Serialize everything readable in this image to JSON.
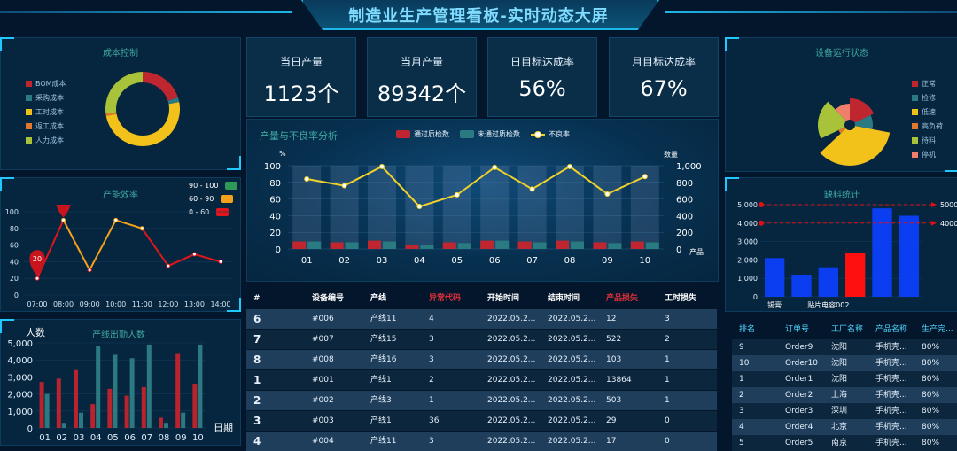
{
  "header": {
    "title": "制造业生产管理看板-实时动态大屏"
  },
  "cost": {
    "title": "成本控制",
    "legend": [
      {
        "label": "BOM成本",
        "color": "#c0262f"
      },
      {
        "label": "采购成本",
        "color": "#2a7a82"
      },
      {
        "label": "工时成本",
        "color": "#f2c21a"
      },
      {
        "label": "返工成本",
        "color": "#e0792b"
      },
      {
        "label": "人力成本",
        "color": "#a8c23a"
      }
    ],
    "values": [
      20,
      2,
      50,
      1,
      27
    ]
  },
  "efficiency": {
    "title": "产能效率",
    "legend": [
      {
        "label": "90 - 100",
        "color": "#2e9a5a"
      },
      {
        "label": "60 - 90",
        "color": "#f5a21a"
      },
      {
        "label": "0 - 60",
        "color": "#e0161b"
      }
    ],
    "pin_high": "90",
    "pin_low": "20"
  },
  "attendance": {
    "title": "产线出勤人数",
    "ylabel": "人数",
    "xlabel": "日期"
  },
  "kpis": [
    {
      "label": "当日产量",
      "value": "1123个"
    },
    {
      "label": "当月产量",
      "value": "89342个"
    },
    {
      "label": "日目标达成率",
      "value": "56%"
    },
    {
      "label": "月目标达成率",
      "value": "67%"
    }
  ],
  "quality": {
    "title": "产量与不良率分析",
    "legend": [
      "通过质检数",
      "未通过质检数",
      "不良率"
    ],
    "left_unit": "%",
    "right_unit": "数量",
    "right_suffix": "产品"
  },
  "device": {
    "title": "设备运行状态",
    "legend": [
      {
        "label": "正常",
        "color": "#c0262f"
      },
      {
        "label": "检修",
        "color": "#2a7a82"
      },
      {
        "label": "低速",
        "color": "#f2c21a"
      },
      {
        "label": "高负荷",
        "color": "#e0792b"
      },
      {
        "label": "待料",
        "color": "#a8c23a"
      },
      {
        "label": "停机",
        "color": "#ef7f6a"
      }
    ],
    "values": [
      18,
      10,
      35,
      5,
      20,
      12
    ]
  },
  "shortage": {
    "title": "缺料统计",
    "line_a": "5000",
    "line_b": "4000"
  },
  "anomaly_table": {
    "headers": [
      "#",
      "设备编号",
      "产线",
      "异常代码",
      "开始时间",
      "结束时间",
      "产品损失",
      "工时损失"
    ],
    "header_colors": [
      "#ffffff",
      "#ffffff",
      "#ffffff",
      "#e0303a",
      "#ffffff",
      "#ffffff",
      "#e0303a",
      "#ffffff"
    ],
    "rows": [
      [
        "6",
        "#006",
        "产线11",
        "4",
        "2022.05.2...",
        "2022.05.2...",
        "12",
        "3"
      ],
      [
        "7",
        "#007",
        "产线15",
        "3",
        "2022.05.2...",
        "2022.05.2...",
        "522",
        "2"
      ],
      [
        "8",
        "#008",
        "产线16",
        "3",
        "2022.05.2...",
        "2022.05.2...",
        "103",
        "1"
      ],
      [
        "1",
        "#001",
        "产线1",
        "2",
        "2022.05.2...",
        "2022.05.2...",
        "13864",
        "1"
      ],
      [
        "2",
        "#002",
        "产线3",
        "1",
        "2022.05.2...",
        "2022.05.2...",
        "503",
        "1"
      ],
      [
        "3",
        "#003",
        "产线1",
        "36",
        "2022.05.2...",
        "2022.05.2...",
        "29",
        "0"
      ],
      [
        "4",
        "#004",
        "产线11",
        "3",
        "2022.05.2...",
        "2022.05.2...",
        "17",
        "0"
      ]
    ]
  },
  "order_table": {
    "headers": [
      "排名",
      "订单号",
      "工厂名称",
      "产品名称",
      "生产完..."
    ],
    "rows": [
      [
        "9",
        "Order9",
        "沈阳",
        "手机壳...",
        "80%"
      ],
      [
        "10",
        "Order10",
        "沈阳",
        "手机壳...",
        "80%"
      ],
      [
        "1",
        "Order1",
        "沈阳",
        "手机壳...",
        "80%"
      ],
      [
        "2",
        "Order2",
        "上海",
        "手机壳...",
        "80%"
      ],
      [
        "3",
        "Order3",
        "深圳",
        "手机壳...",
        "80%"
      ],
      [
        "4",
        "Order4",
        "北京",
        "手机壳...",
        "80%"
      ],
      [
        "5",
        "Order5",
        "南京",
        "手机壳...",
        "80%"
      ]
    ]
  },
  "chart_data": [
    {
      "type": "line",
      "title": "产能效率",
      "categories": [
        "07:00",
        "08:00",
        "09:00",
        "10:00",
        "11:00",
        "12:00",
        "13:00",
        "14:00"
      ],
      "values": [
        20,
        90,
        30,
        90,
        80,
        35,
        49,
        40
      ],
      "ylim": [
        0,
        100
      ],
      "yticks": [
        0,
        20,
        40,
        60,
        80,
        100
      ]
    },
    {
      "type": "bar",
      "title": "产线出勤人数",
      "ylabel": "人数",
      "xlabel": "日期",
      "categories": [
        "01",
        "02",
        "03",
        "04",
        "05",
        "06",
        "07",
        "08",
        "09",
        "10"
      ],
      "series": [
        {
          "values": [
            2700,
            2900,
            3400,
            1400,
            2300,
            1900,
            2400,
            600,
            4400,
            2600
          ],
          "color": "#b8232d"
        },
        {
          "values": [
            2000,
            300,
            900,
            4800,
            4300,
            4100,
            4900,
            300,
            900,
            4900
          ],
          "color": "#2b7a82"
        }
      ],
      "ylim": [
        0,
        5000
      ],
      "yticks": [
        "0",
        "1,000",
        "2,000",
        "3,000",
        "4,000",
        "5,000"
      ]
    },
    {
      "type": "bar",
      "title": "产量与不良率分析",
      "categories": [
        "01",
        "02",
        "03",
        "04",
        "05",
        "06",
        "07",
        "08",
        "09",
        "10"
      ],
      "series": [
        {
          "name": "通过质检数",
          "values": [
            90,
            80,
            100,
            50,
            80,
            100,
            90,
            100,
            80,
            90
          ],
          "color": "#c0262f"
        },
        {
          "name": "未通过质检数",
          "values": [
            90,
            80,
            90,
            50,
            70,
            100,
            80,
            90,
            70,
            80
          ],
          "color": "#2a7a82"
        },
        {
          "name": "不良率",
          "values": [
            84,
            76,
            99,
            51,
            65,
            98,
            72,
            99,
            66,
            87
          ],
          "color": "#f2d22a"
        }
      ],
      "left_ylim": [
        0,
        100
      ],
      "left_yticks": [
        0,
        20,
        40,
        60,
        80,
        100
      ],
      "right_ylim": [
        0,
        1000
      ],
      "right_yticks": [
        "0",
        "200",
        "400",
        "600",
        "800",
        "1,000"
      ]
    },
    {
      "type": "bar",
      "title": "缺料统计",
      "categories": [
        "锡膏",
        "",
        "贴片电容002",
        "",
        "",
        ""
      ],
      "values": [
        2100,
        1200,
        1600,
        2400,
        4800,
        4400
      ],
      "colors": [
        "#0a3ef0",
        "#0a3ef0",
        "#0a3ef0",
        "#ff1010",
        "#0a3ef0",
        "#0a3ef0"
      ],
      "ylim": [
        0,
        5000
      ],
      "yticks": [
        "0",
        "1,000",
        "2,000",
        "3,000",
        "4,000",
        "5,000"
      ],
      "markers": [
        5000,
        4000
      ]
    }
  ]
}
